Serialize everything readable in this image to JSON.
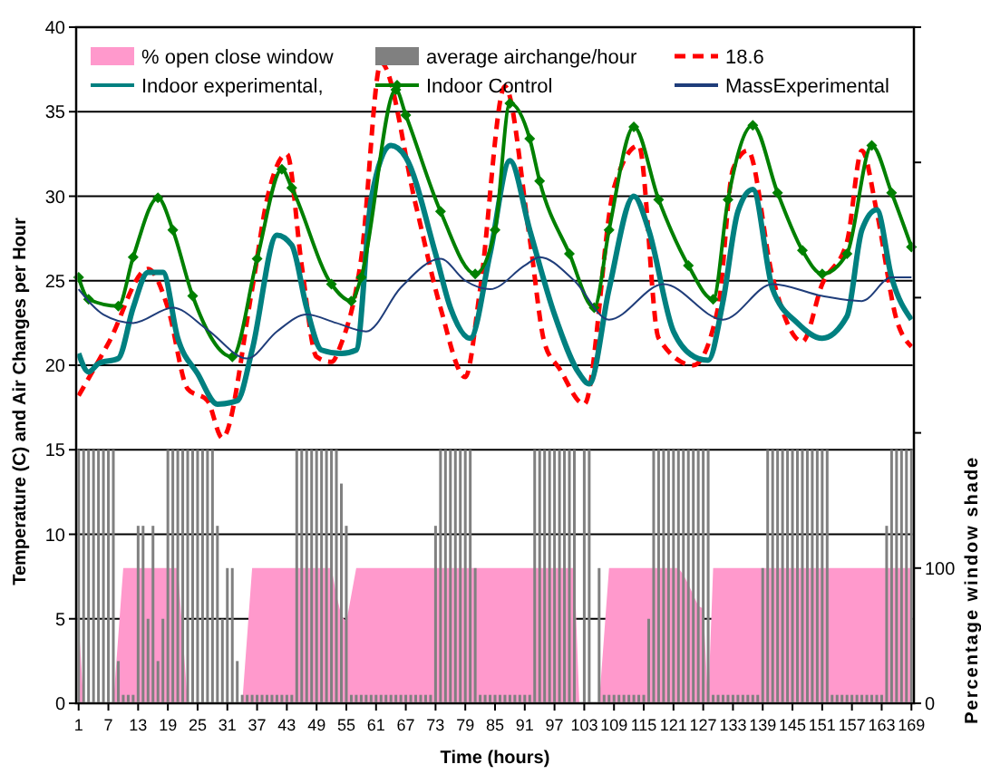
{
  "chart_data": {
    "type": "line",
    "xlabel": "Time (hours)",
    "ylabel": "Temperature (C) and Air Changes per Hour",
    "y2label": "Percentage window shade",
    "xlim": [
      0.5,
      169.5
    ],
    "xticks": [
      1,
      7,
      13,
      19,
      25,
      31,
      37,
      43,
      49,
      55,
      61,
      67,
      73,
      79,
      85,
      91,
      97,
      103,
      109,
      115,
      121,
      127,
      133,
      139,
      145,
      151,
      157,
      163,
      169
    ],
    "ylim": [
      0,
      40
    ],
    "yticks": [
      0,
      5,
      10,
      15,
      20,
      25,
      30,
      35,
      40
    ],
    "y2lim": [
      0,
      500
    ],
    "y2ticks": [
      0,
      100,
      {
        "value": 200,
        "label": null
      },
      {
        "value": 300,
        "label": null
      },
      {
        "value": 400,
        "label": null
      },
      {
        "value": 500,
        "label": null
      }
    ],
    "grid": "y",
    "legend": "top",
    "series": [
      {
        "name": "% open close window",
        "type": "area",
        "axis": "y2",
        "color": "#ff99cc",
        "x": [
          1,
          2,
          3,
          4,
          5,
          6,
          7,
          8,
          9,
          10,
          11,
          12,
          13,
          14,
          15,
          16,
          17,
          18,
          19,
          20,
          21,
          22,
          23,
          24,
          25,
          26,
          27,
          28,
          29,
          30,
          31,
          32,
          33,
          34,
          35,
          36,
          37,
          38,
          39,
          40,
          41,
          42,
          43,
          44,
          45,
          46,
          47,
          48,
          49,
          50,
          51,
          52,
          53,
          54,
          55,
          56,
          57,
          58,
          59,
          60,
          61,
          62,
          63,
          64,
          65,
          66,
          67,
          68,
          69,
          70,
          71,
          72,
          73,
          74,
          75,
          76,
          77,
          78,
          79,
          80,
          81,
          82,
          83,
          84,
          85,
          86,
          87,
          88,
          89,
          90,
          91,
          92,
          93,
          94,
          95,
          96,
          97,
          98,
          99,
          100,
          101,
          102,
          103,
          104,
          105,
          106,
          107,
          108,
          109,
          110,
          111,
          112,
          113,
          114,
          115,
          116,
          117,
          118,
          119,
          120,
          121,
          122,
          123,
          124,
          125,
          126,
          127,
          128,
          129,
          130,
          131,
          132,
          133,
          134,
          135,
          136,
          137,
          138,
          139,
          140,
          141,
          142,
          143,
          144,
          145,
          146,
          147,
          148,
          149,
          150,
          151,
          152,
          153,
          154,
          155,
          156,
          157,
          158,
          159,
          160,
          161,
          162,
          163,
          164,
          165,
          166,
          167,
          168,
          169
        ],
        "values": [
          60,
          0,
          0,
          0,
          0,
          0,
          0,
          0,
          50,
          100,
          100,
          100,
          100,
          100,
          100,
          100,
          100,
          100,
          100,
          100,
          100,
          50,
          0,
          0,
          0,
          0,
          0,
          0,
          0,
          0,
          0,
          0,
          0,
          0,
          50,
          100,
          100,
          100,
          100,
          100,
          100,
          100,
          100,
          100,
          100,
          100,
          100,
          100,
          100,
          100,
          100,
          100,
          80,
          65,
          60,
          80,
          100,
          100,
          100,
          100,
          100,
          100,
          100,
          100,
          100,
          100,
          100,
          100,
          100,
          100,
          100,
          100,
          100,
          100,
          100,
          100,
          100,
          100,
          100,
          100,
          100,
          100,
          100,
          100,
          100,
          100,
          100,
          100,
          100,
          100,
          100,
          100,
          100,
          100,
          100,
          100,
          100,
          100,
          100,
          100,
          100,
          0,
          0,
          0,
          0,
          0,
          50,
          100,
          100,
          100,
          100,
          100,
          100,
          100,
          100,
          100,
          100,
          100,
          100,
          100,
          100,
          100,
          95,
          88,
          80,
          72,
          70,
          0,
          100,
          100,
          100,
          100,
          100,
          100,
          100,
          100,
          100,
          100,
          100,
          100,
          100,
          100,
          100,
          100,
          100,
          100,
          100,
          100,
          100,
          100,
          100,
          100,
          100,
          100,
          100,
          100,
          100,
          100,
          100,
          100,
          100,
          100,
          100,
          100,
          100,
          100,
          100,
          100,
          100
        ]
      },
      {
        "name": "average airchange/hour",
        "type": "bar",
        "color": "#808080",
        "x": [
          1,
          2,
          3,
          4,
          5,
          6,
          7,
          8,
          9,
          10,
          11,
          12,
          13,
          14,
          15,
          16,
          17,
          18,
          19,
          20,
          21,
          22,
          23,
          24,
          25,
          26,
          27,
          28,
          29,
          30,
          31,
          32,
          33,
          34,
          35,
          36,
          37,
          38,
          39,
          40,
          41,
          42,
          43,
          44,
          45,
          46,
          47,
          48,
          49,
          50,
          51,
          52,
          53,
          54,
          55,
          56,
          57,
          58,
          59,
          60,
          61,
          62,
          63,
          64,
          65,
          66,
          67,
          68,
          69,
          70,
          71,
          72,
          73,
          74,
          75,
          76,
          77,
          78,
          79,
          80,
          81,
          82,
          83,
          84,
          85,
          86,
          87,
          88,
          89,
          90,
          91,
          92,
          93,
          94,
          95,
          96,
          97,
          98,
          99,
          100,
          101,
          102,
          103,
          104,
          105,
          106,
          107,
          108,
          109,
          110,
          111,
          112,
          113,
          114,
          115,
          116,
          117,
          118,
          119,
          120,
          121,
          122,
          123,
          124,
          125,
          126,
          127,
          128,
          129,
          130,
          131,
          132,
          133,
          134,
          135,
          136,
          137,
          138,
          139,
          140,
          141,
          142,
          143,
          144,
          145,
          146,
          147,
          148,
          149,
          150,
          151,
          152,
          153,
          154,
          155,
          156,
          157,
          158,
          159,
          160,
          161,
          162,
          163,
          164,
          165,
          166,
          167,
          168,
          169
        ],
        "values": [
          15,
          15,
          15,
          15,
          15,
          15,
          15,
          15,
          2.5,
          0.5,
          0.5,
          0.5,
          10.5,
          10.5,
          5,
          10.5,
          2.5,
          5,
          15,
          15,
          15,
          15,
          15,
          15,
          15,
          15,
          15,
          15,
          10.5,
          5,
          8,
          8,
          2.5,
          0.5,
          0.5,
          0.5,
          0.5,
          0.5,
          0.5,
          0.5,
          0.5,
          0.5,
          0.5,
          0.5,
          15,
          15,
          15,
          15,
          15,
          15,
          15,
          15,
          15,
          13,
          10.5,
          0.5,
          0.5,
          0.5,
          0.5,
          0.5,
          0.5,
          0.5,
          0.5,
          0.5,
          0.5,
          0.5,
          0.5,
          0.5,
          0.5,
          0.5,
          0.5,
          0.5,
          10.5,
          15,
          15,
          15,
          15,
          15,
          15,
          15,
          8,
          0.5,
          0.5,
          0.5,
          0.5,
          0.5,
          0.5,
          0.5,
          0.5,
          0.5,
          0.5,
          0.5,
          15,
          15,
          15,
          15,
          15,
          15,
          15,
          15,
          15,
          0,
          15,
          15,
          0,
          8,
          0.5,
          0.5,
          0.5,
          0.5,
          0.5,
          0.5,
          0.5,
          0.5,
          0.5,
          5,
          15,
          15,
          15,
          15,
          15,
          15,
          15,
          15,
          15,
          15,
          15,
          15,
          0.5,
          0.5,
          0.5,
          0.5,
          0.5,
          0.5,
          0.5,
          0.5,
          0.5,
          0.5,
          8,
          15,
          15,
          15,
          15,
          15,
          15,
          15,
          15,
          15,
          15,
          15,
          15,
          15,
          0.5,
          0.5,
          0.5,
          0.5,
          0.5,
          0.5,
          0.5,
          0.5,
          0.5,
          0.5,
          0.5,
          10.5,
          15,
          15,
          15,
          15,
          15
        ]
      },
      {
        "name": "18.6",
        "color": "#ff0000",
        "line_style": "dashed",
        "x": [
          1,
          7,
          15,
          19,
          23,
          27,
          30,
          36,
          39,
          43,
          46,
          49,
          52,
          54,
          58,
          62,
          69,
          74,
          79,
          82,
          87,
          92,
          95,
          98,
          103,
          109,
          114,
          118,
          125,
          130,
          133,
          136,
          141,
          147,
          151,
          156,
          159,
          162,
          166,
          169
        ],
        "values": [
          18.2,
          21.3,
          25.7,
          23.4,
          18.6,
          17.9,
          15.7,
          24.5,
          29.8,
          32.5,
          25.9,
          20.5,
          20.2,
          21.3,
          26.3,
          37.9,
          29.5,
          23.4,
          19.3,
          24.5,
          36.5,
          27.5,
          21.3,
          19.8,
          17.7,
          30.5,
          33,
          21.6,
          20,
          23.4,
          31.6,
          32.7,
          25.2,
          21.4,
          24.8,
          27.3,
          32.7,
          29.1,
          22.7,
          21.1
        ]
      },
      {
        "name": "Indoor experimental,",
        "color": "#008080",
        "x": [
          1,
          3,
          5,
          9,
          12,
          15,
          18,
          21,
          25,
          29,
          33,
          36,
          41,
          44,
          47,
          50,
          54,
          57,
          60,
          64,
          67,
          73,
          76,
          80,
          84,
          88,
          92,
          97,
          102,
          104,
          108,
          113,
          116,
          121,
          126,
          128,
          131,
          134,
          137,
          141,
          146,
          151,
          156,
          159,
          162,
          165,
          169
        ],
        "values": [
          20.7,
          19.6,
          20.1,
          20.4,
          23.4,
          25.5,
          25.5,
          21.6,
          19.5,
          17.7,
          17.9,
          20.9,
          27.7,
          27.1,
          23.4,
          20.9,
          20.7,
          20.9,
          29.8,
          33,
          32.3,
          26.6,
          23.4,
          21.6,
          26.6,
          32.1,
          28,
          23,
          19.5,
          18.9,
          24.5,
          30,
          28,
          22,
          20.4,
          20.3,
          23.8,
          29.1,
          30.4,
          24.5,
          22.5,
          21.6,
          22.9,
          28,
          29.2,
          25.2,
          22.7
        ]
      },
      {
        "name": "Indoor Control",
        "color": "#008000",
        "marker": "diamond",
        "x": [
          1,
          3,
          9,
          12,
          17,
          20,
          24,
          32,
          37,
          42,
          44,
          52,
          56,
          58,
          65,
          67,
          74,
          81,
          85,
          88,
          92,
          94,
          100,
          105,
          108,
          113,
          118,
          124,
          129,
          132,
          137,
          142,
          147,
          151,
          156,
          161,
          165,
          169
        ],
        "values": [
          25.2,
          23.9,
          23.5,
          26.4,
          29.9,
          28,
          24.1,
          20.5,
          26.3,
          31.6,
          30.5,
          24.8,
          23.8,
          25.2,
          36.3,
          34.8,
          29.1,
          25.4,
          28,
          35.5,
          33.4,
          30.9,
          26.6,
          23.4,
          28,
          34.1,
          29.8,
          25.9,
          23.9,
          29.8,
          34.2,
          30.2,
          26.8,
          25.4,
          26.6,
          33,
          30.2,
          27
        ]
      },
      {
        "name": "MassExperimental",
        "color": "#1f3d7a",
        "x": [
          1,
          6,
          12,
          20,
          27,
          35,
          41,
          47,
          53,
          59,
          66,
          74,
          79,
          84,
          91,
          94,
          101,
          108,
          119,
          131,
          141,
          151,
          159,
          165,
          169
        ],
        "values": [
          24.5,
          23,
          22.5,
          23.4,
          22.1,
          20.4,
          22,
          23,
          22.5,
          22,
          24.6,
          26.3,
          25,
          24.5,
          25.9,
          26.4,
          25,
          22.7,
          24.8,
          22.7,
          24.8,
          24.1,
          23.8,
          25.2,
          25.2
        ]
      }
    ]
  }
}
